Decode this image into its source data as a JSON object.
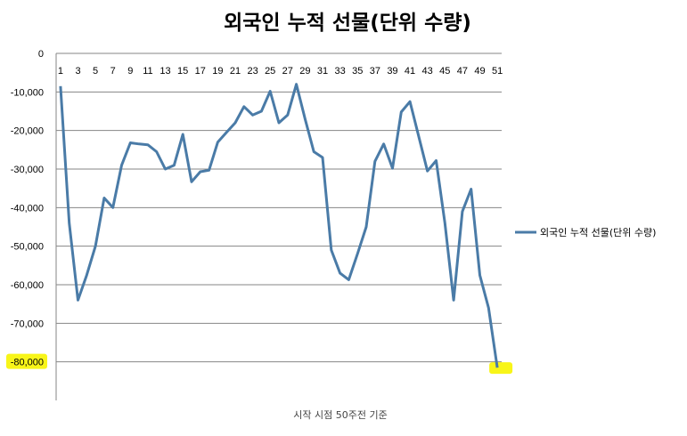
{
  "chart_data": {
    "type": "line",
    "title": "외국인 누적 선물(단위 수량)",
    "xlabel": "시작 시점 50주전 기준",
    "ylabel": "",
    "ylim": [
      -90000,
      0
    ],
    "yticks": [
      0,
      -10000,
      -20000,
      -30000,
      -40000,
      -50000,
      -60000,
      -70000,
      -80000
    ],
    "ytick_labels": [
      "0",
      "-10,000",
      "-20,000",
      "-30,000",
      "-40,000",
      "-50,000",
      "-60,000",
      "-70,000",
      "-80,000"
    ],
    "xtick_labels": [
      "1",
      "3",
      "5",
      "7",
      "9",
      "11",
      "13",
      "15",
      "17",
      "19",
      "21",
      "23",
      "25",
      "27",
      "29",
      "31",
      "33",
      "35",
      "37",
      "39",
      "41",
      "43",
      "45",
      "47",
      "49",
      "51"
    ],
    "x": [
      1,
      2,
      3,
      4,
      5,
      6,
      7,
      8,
      9,
      10,
      11,
      12,
      13,
      14,
      15,
      16,
      17,
      18,
      19,
      20,
      21,
      22,
      23,
      24,
      25,
      26,
      27,
      28,
      29,
      30,
      31,
      32,
      33,
      34,
      35,
      36,
      37,
      38,
      39,
      40,
      41,
      42,
      43,
      44,
      45,
      46,
      47,
      48,
      49,
      50,
      51
    ],
    "series": [
      {
        "name": "외국인 누적 선물(단위 수량)",
        "color": "#4a7ba7",
        "values": [
          -8500,
          -44000,
          -64000,
          -57500,
          -50000,
          -37500,
          -40000,
          -29000,
          -23200,
          -23500,
          -23700,
          -25500,
          -30000,
          -29000,
          -21000,
          -33300,
          -30700,
          -30300,
          -23000,
          -20500,
          -18000,
          -13800,
          -16000,
          -15000,
          -9800,
          -18000,
          -16000,
          -8000,
          -17000,
          -25500,
          -27000,
          -51000,
          -57000,
          -58700,
          -52000,
          -45000,
          -28000,
          -23500,
          -29800,
          -15200,
          -12500,
          -21500,
          -30500,
          -27800,
          -44000,
          -64000,
          -41000,
          -35200,
          -57500,
          -66000,
          -81500
        ]
      }
    ],
    "grid": true,
    "legend_position": "right"
  },
  "highlight_color": "#f7f400"
}
